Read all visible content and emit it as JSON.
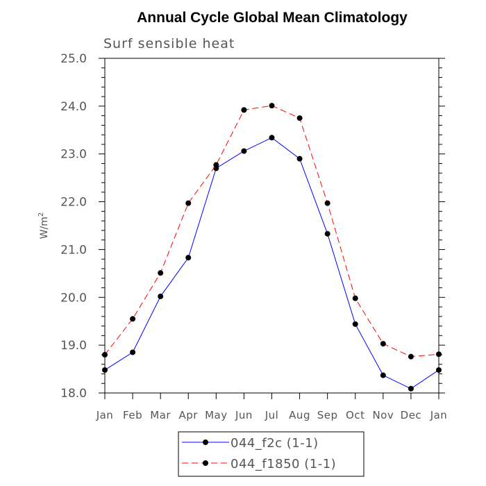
{
  "chart_data": {
    "type": "line",
    "title": "Annual Cycle Global Mean Climatology",
    "subtitle": "Surf sensible heat",
    "ylabel": "W/m",
    "ylabel_sup": "2",
    "xlabel": "",
    "categories": [
      "Jan",
      "Feb",
      "Mar",
      "Apr",
      "May",
      "Jun",
      "Jul",
      "Aug",
      "Sep",
      "Oct",
      "Nov",
      "Dec",
      "Jan"
    ],
    "ylim": [
      18.0,
      25.0
    ],
    "yticks": [
      "18.0",
      "19.0",
      "20.0",
      "21.0",
      "22.0",
      "23.0",
      "24.0",
      "25.0"
    ],
    "grid": false,
    "legend_position": "bottom",
    "series": [
      {
        "name": "044_f2c (1-1)",
        "color": "#0000ff",
        "dash": "solid",
        "values": [
          18.48,
          18.85,
          20.02,
          20.83,
          22.7,
          23.06,
          23.34,
          22.9,
          21.33,
          19.44,
          18.37,
          18.09,
          18.48
        ]
      },
      {
        "name": "044_f1850 (1-1)",
        "color": "#ff0000",
        "dash": "dashed",
        "values": [
          18.8,
          19.55,
          20.51,
          21.97,
          22.77,
          23.92,
          24.01,
          23.75,
          21.97,
          19.98,
          19.03,
          18.76,
          18.81
        ]
      }
    ]
  }
}
